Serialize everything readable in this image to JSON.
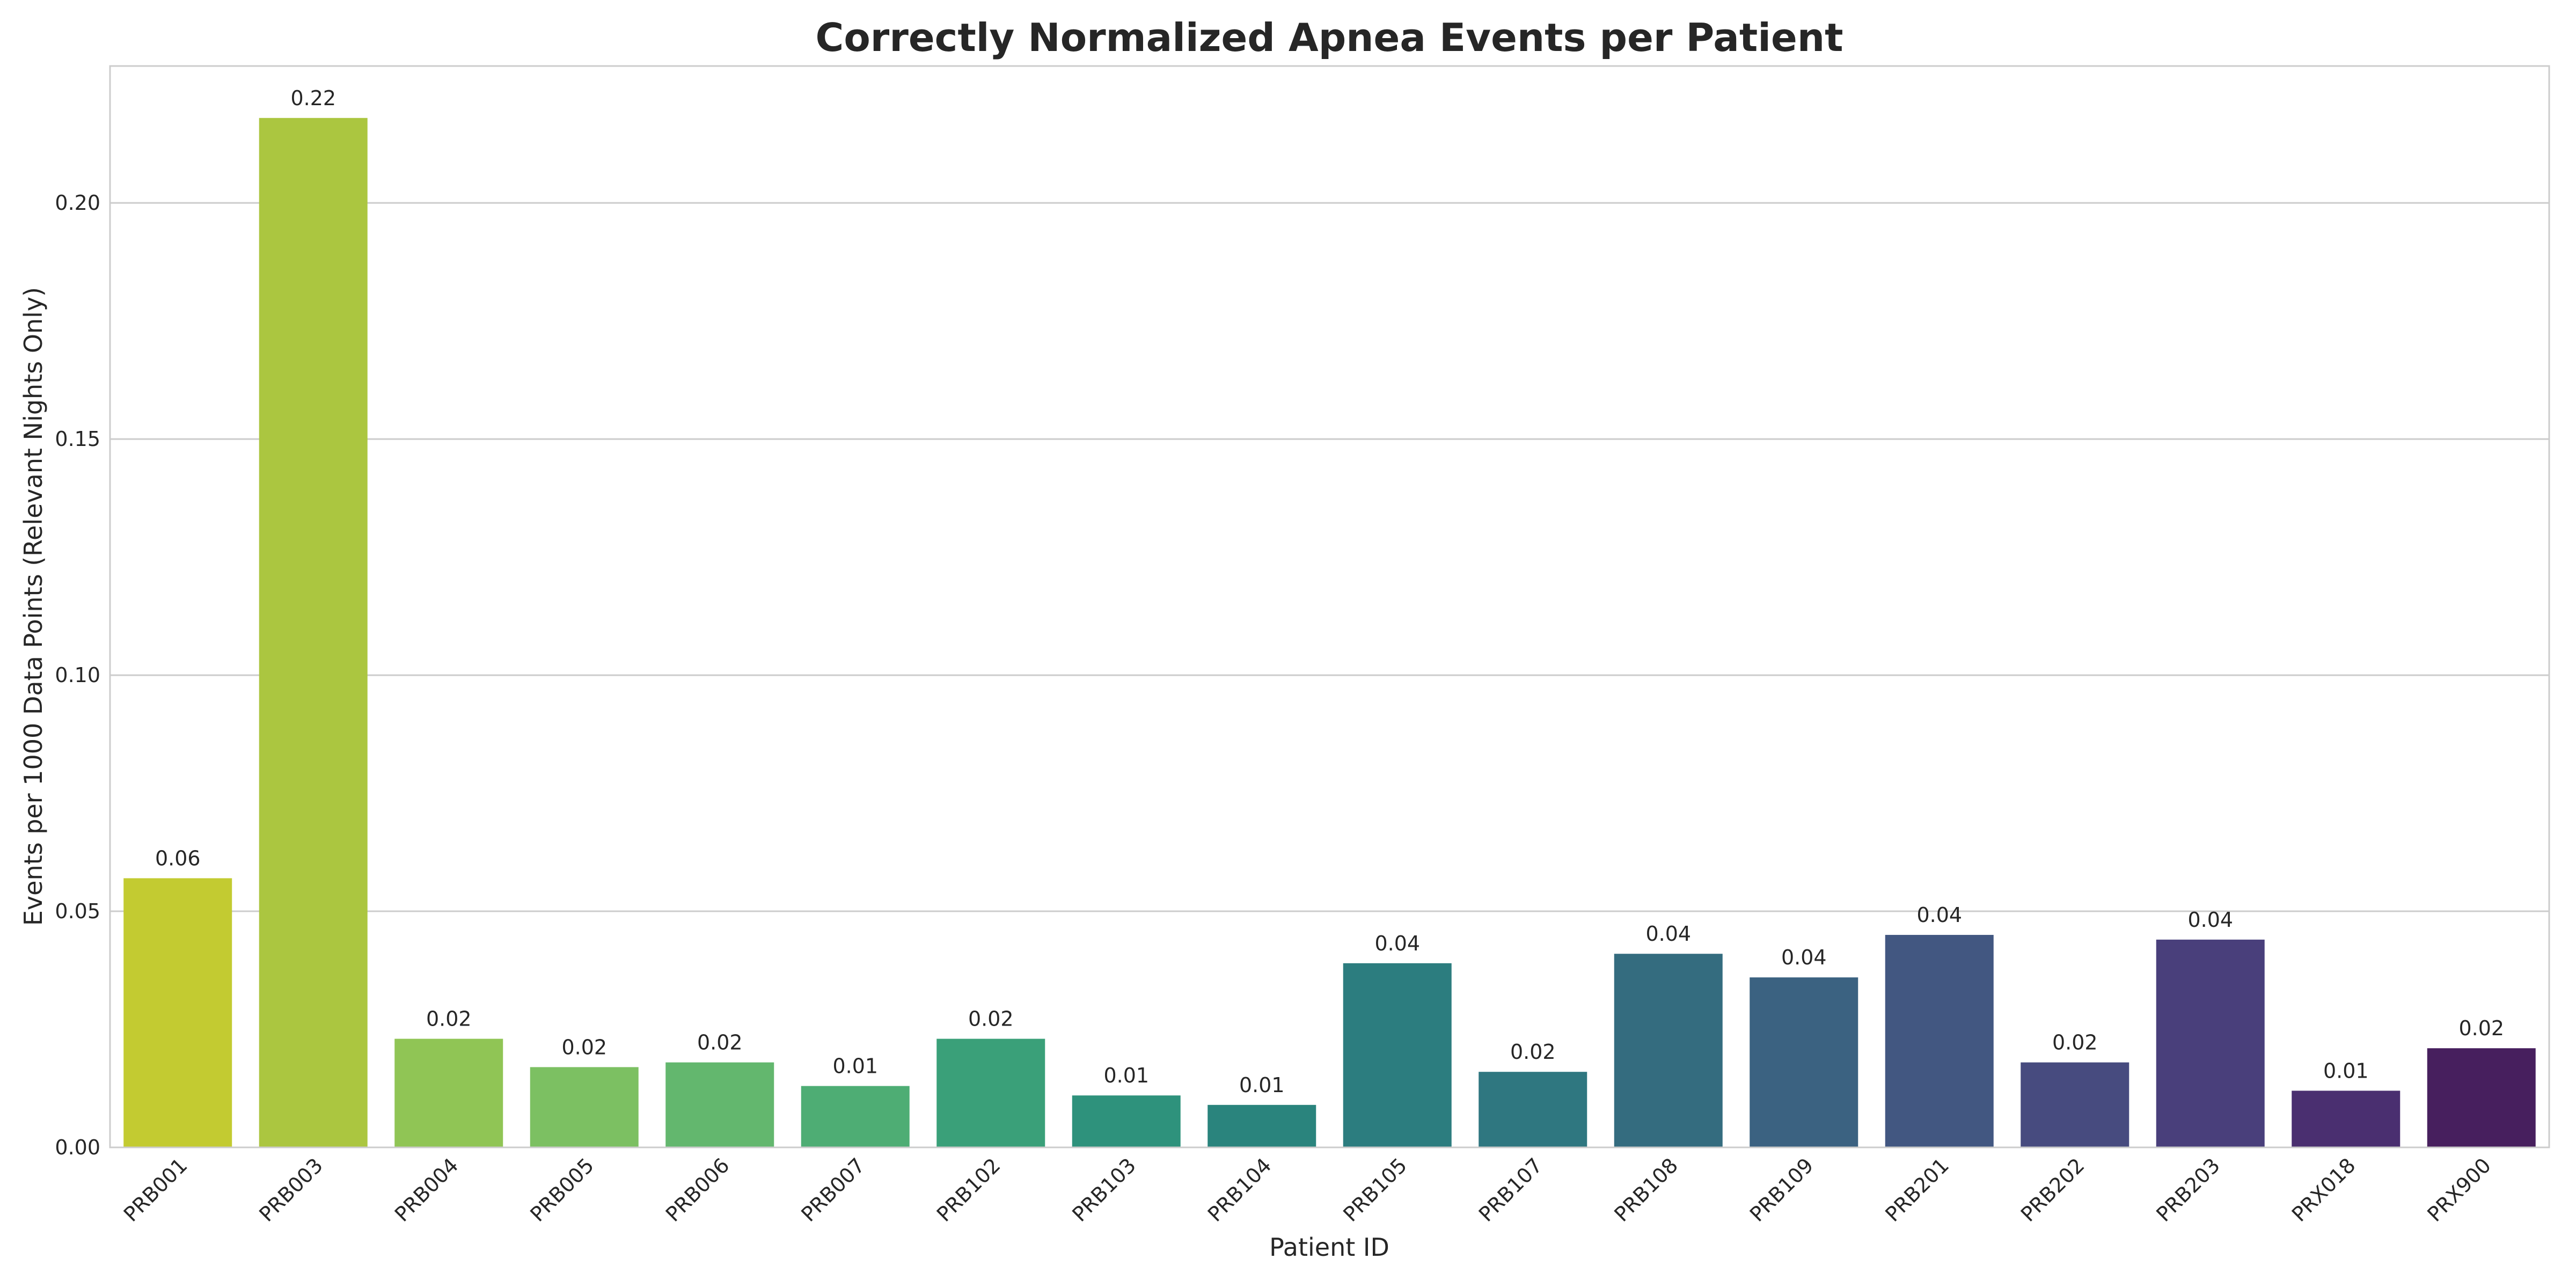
{
  "chart_data": {
    "type": "bar",
    "title": "Correctly Normalized Apnea Events per Patient",
    "xlabel": "Patient ID",
    "ylabel": "Events per 1000 Data Points (Relevant Nights Only)",
    "categories": [
      "PRB001",
      "PRB003",
      "PRB004",
      "PRB005",
      "PRB006",
      "PRB007",
      "PRB102",
      "PRB103",
      "PRB104",
      "PRB105",
      "PRB107",
      "PRB108",
      "PRB109",
      "PRB201",
      "PRB202",
      "PRB203",
      "PRX018",
      "PRX900"
    ],
    "values": [
      0.057,
      0.218,
      0.023,
      0.017,
      0.018,
      0.013,
      0.023,
      0.011,
      0.009,
      0.039,
      0.016,
      0.041,
      0.036,
      0.045,
      0.018,
      0.044,
      0.012,
      0.021
    ],
    "value_labels": [
      "0.06",
      "0.22",
      "0.02",
      "0.02",
      "0.02",
      "0.01",
      "0.02",
      "0.01",
      "0.01",
      "0.04",
      "0.02",
      "0.04",
      "0.04",
      "0.04",
      "0.02",
      "0.04",
      "0.01",
      "0.02"
    ],
    "colors": [
      "#c3cb31",
      "#abc640",
      "#90c555",
      "#7cc062",
      "#63b76e",
      "#4ead74",
      "#3aa079",
      "#2e927c",
      "#2a847d",
      "#2c7d7f",
      "#2f7780",
      "#346c7f",
      "#3b6281",
      "#425781",
      "#474b7f",
      "#493f7b",
      "#4a2f70",
      "#471f5e"
    ],
    "yticks": [
      0.0,
      0.05,
      0.1,
      0.15,
      0.2
    ],
    "ytick_labels": [
      "0.00",
      "0.05",
      "0.10",
      "0.15",
      "0.20"
    ],
    "ylim": [
      0,
      0.229
    ],
    "grid": "horizontal",
    "legend": "none"
  }
}
